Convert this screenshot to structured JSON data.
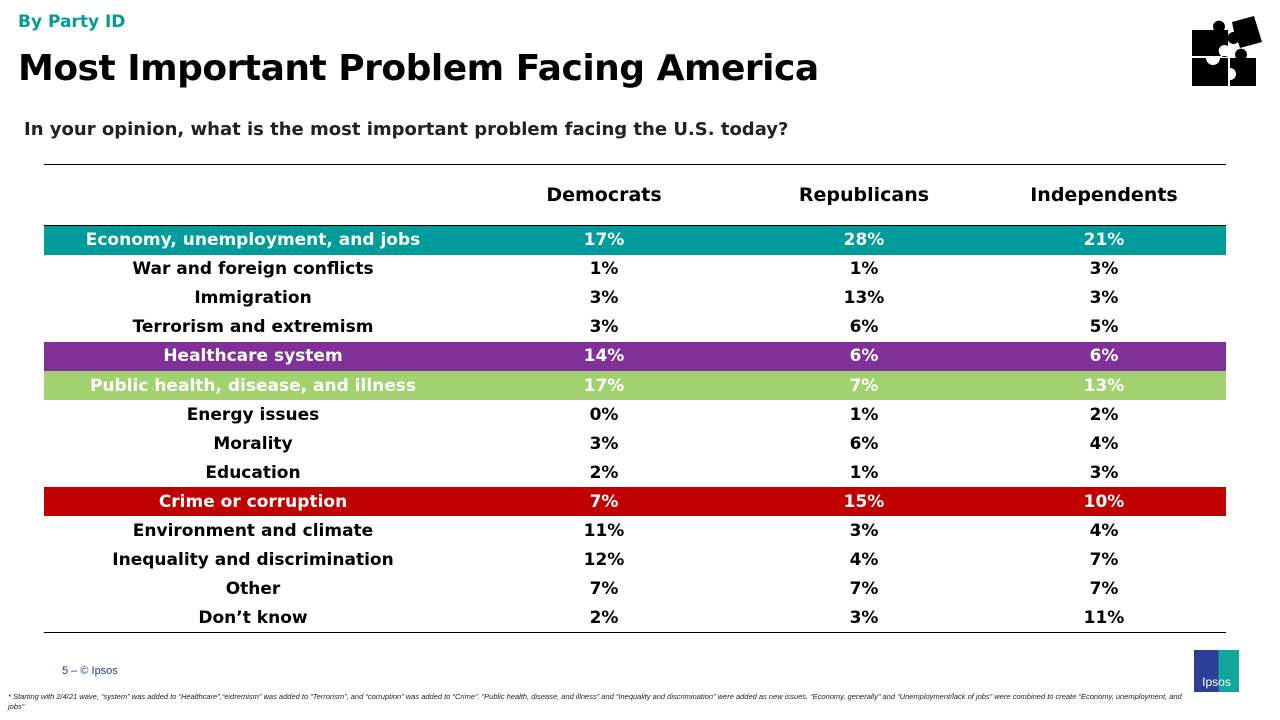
{
  "header": {
    "kicker": "By Party ID",
    "title": "Most Important Problem Facing America",
    "question": "In your opinion, what is the most important problem facing the U.S. today?"
  },
  "colors": {
    "accent": "#009b9b",
    "economy": "#009b9b",
    "healthcare": "#7f3197",
    "public_health": "#a2d26f",
    "crime": "#c00000"
  },
  "table": {
    "columns": [
      "",
      "Democrats",
      "Republicans",
      "Independents"
    ],
    "rows": [
      {
        "label": "Economy, unemployment, and jobs",
        "values": [
          "17%",
          "28%",
          "21%"
        ],
        "highlight": "#009b9b"
      },
      {
        "label": "War and foreign conflicts",
        "values": [
          "1%",
          "1%",
          "3%"
        ]
      },
      {
        "label": "Immigration",
        "values": [
          "3%",
          "13%",
          "3%"
        ]
      },
      {
        "label": "Terrorism and extremism",
        "values": [
          "3%",
          "6%",
          "5%"
        ]
      },
      {
        "label": "Healthcare system",
        "values": [
          "14%",
          "6%",
          "6%"
        ],
        "highlight": "#7f3197"
      },
      {
        "label": "Public health, disease, and illness",
        "values": [
          "17%",
          "7%",
          "13%"
        ],
        "highlight": "#a2d26f"
      },
      {
        "label": "Energy issues",
        "values": [
          "0%",
          "1%",
          "2%"
        ]
      },
      {
        "label": "Morality",
        "values": [
          "3%",
          "6%",
          "4%"
        ]
      },
      {
        "label": "Education",
        "values": [
          "2%",
          "1%",
          "3%"
        ]
      },
      {
        "label": "Crime or corruption",
        "values": [
          "7%",
          "15%",
          "10%"
        ],
        "highlight": "#c00000"
      },
      {
        "label": "Environment and climate",
        "values": [
          "11%",
          "3%",
          "4%"
        ]
      },
      {
        "label": "Inequality and discrimination",
        "values": [
          "12%",
          "4%",
          "7%"
        ]
      },
      {
        "label": "Other",
        "values": [
          "7%",
          "7%",
          "7%"
        ]
      },
      {
        "label": "Don’t know",
        "values": [
          "2%",
          "3%",
          "11%"
        ]
      }
    ]
  },
  "footer": {
    "page": "5 –  © Ipsos",
    "note": "* Starting with 2/4/21 wave, “system” was added to “Healthcare”,“extremism” was added to “Terrorism”, and “corruption” was added to “Crime”. “Public health, disease, and illness” and “Inequality and discrimination” were added as new issues. “Economy, generally” and “Unemployment/lack of jobs” were combined to create “Economy, unemployment, and jobs”",
    "logo": "Ipsos"
  }
}
